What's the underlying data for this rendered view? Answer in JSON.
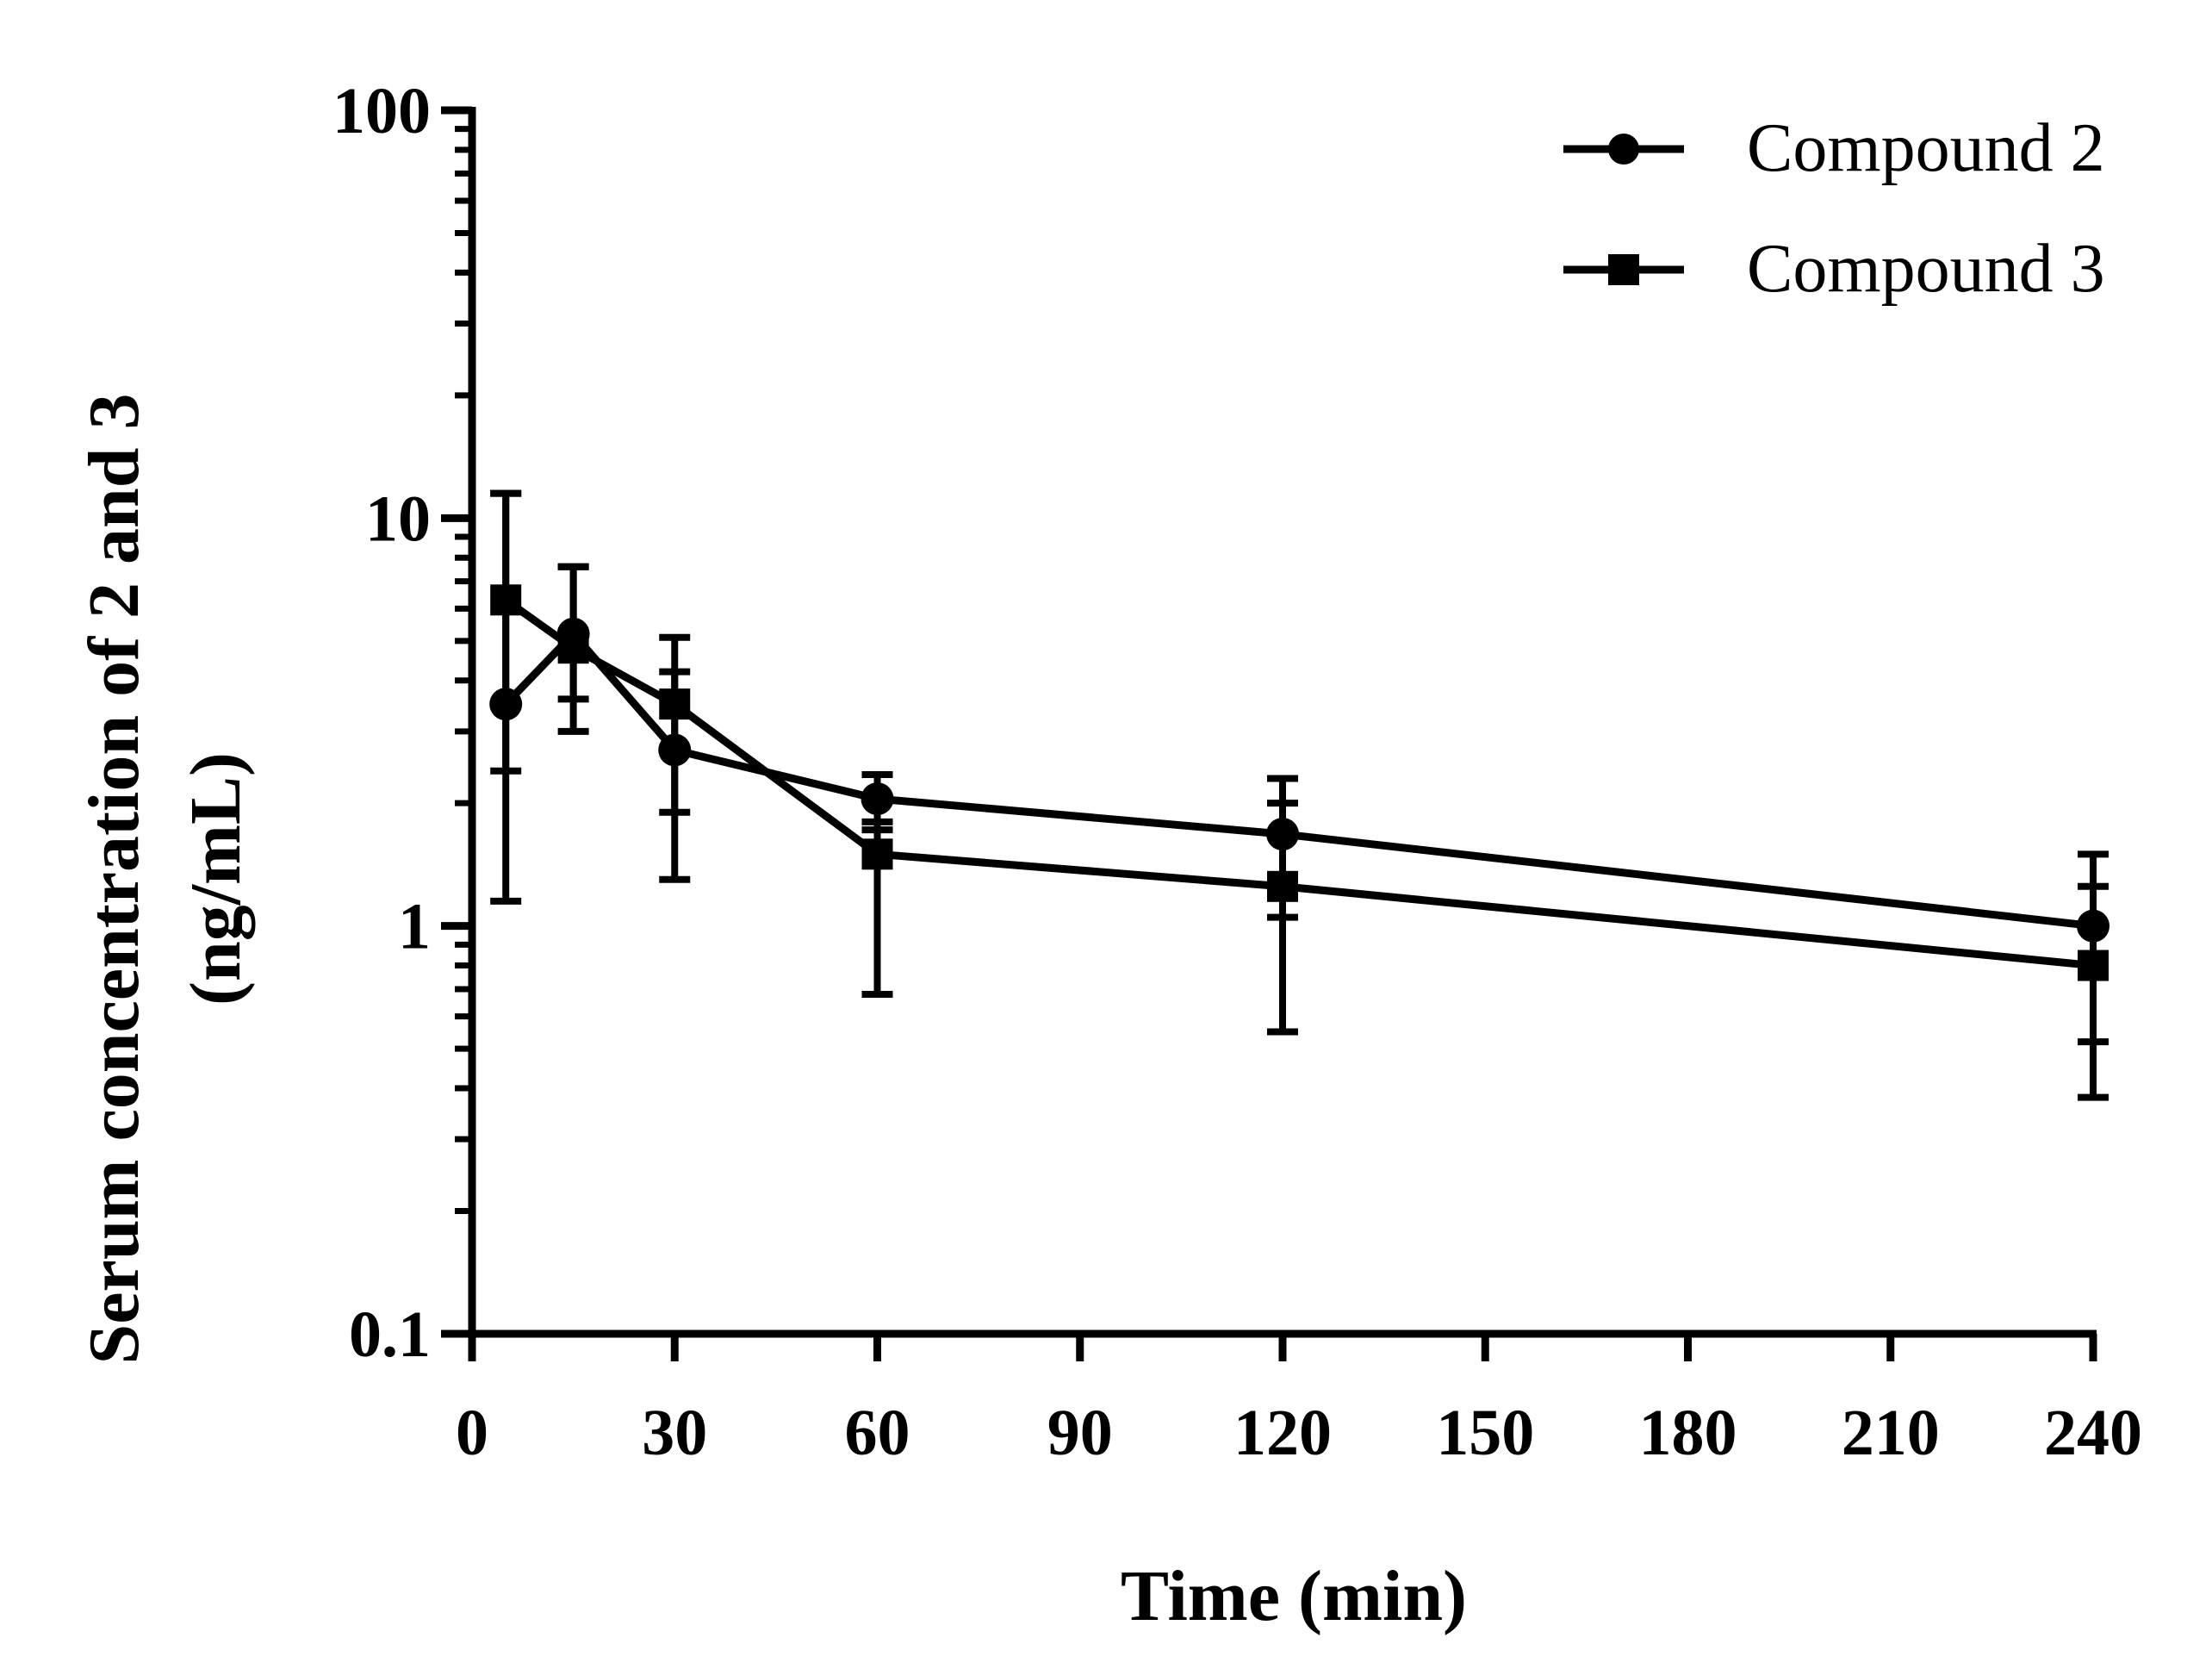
{
  "chart_data": {
    "type": "line",
    "xlabel": "Time (min)",
    "ylabel_line1": "Serum concentration of 2 and 3",
    "ylabel_line2": "(ng/mL)",
    "yscale": "log",
    "xlim": [
      0,
      240
    ],
    "ylim": [
      0.1,
      100
    ],
    "xticks": [
      0,
      30,
      60,
      90,
      120,
      150,
      180,
      210,
      240
    ],
    "xtick_labels": [
      "0",
      "30",
      "60",
      "90",
      "120",
      "150",
      "180",
      "210",
      "240"
    ],
    "yticks": [
      0.1,
      1,
      10,
      100
    ],
    "ytick_labels": [
      "0.1",
      "1",
      "10",
      "100"
    ],
    "legend_position": "top-right",
    "grid": false,
    "series": [
      {
        "name": "Compound 2",
        "marker": "circle",
        "x": [
          5,
          15,
          30,
          60,
          120,
          240
        ],
        "values": [
          3.5,
          5.2,
          2.7,
          2.05,
          1.68,
          1.0
        ],
        "err_low": [
          1.15,
          3.0,
          1.3,
          1.72,
          1.05,
          0.52
        ],
        "err_high": [
          11.5,
          7.6,
          4.2,
          2.35,
          2.3,
          1.5
        ]
      },
      {
        "name": "Compound 3",
        "marker": "square",
        "x": [
          5,
          15,
          30,
          60,
          120,
          240
        ],
        "values": [
          6.3,
          4.8,
          3.5,
          1.5,
          1.25,
          0.8
        ],
        "err_low": [
          2.4,
          3.6,
          1.9,
          0.68,
          0.55,
          0.38
        ],
        "err_high": [
          11.5,
          7.6,
          5.1,
          1.8,
          2.0,
          1.25
        ]
      }
    ],
    "colors": {
      "line": "#000000",
      "marker": "#000000",
      "background": "#ffffff"
    }
  }
}
